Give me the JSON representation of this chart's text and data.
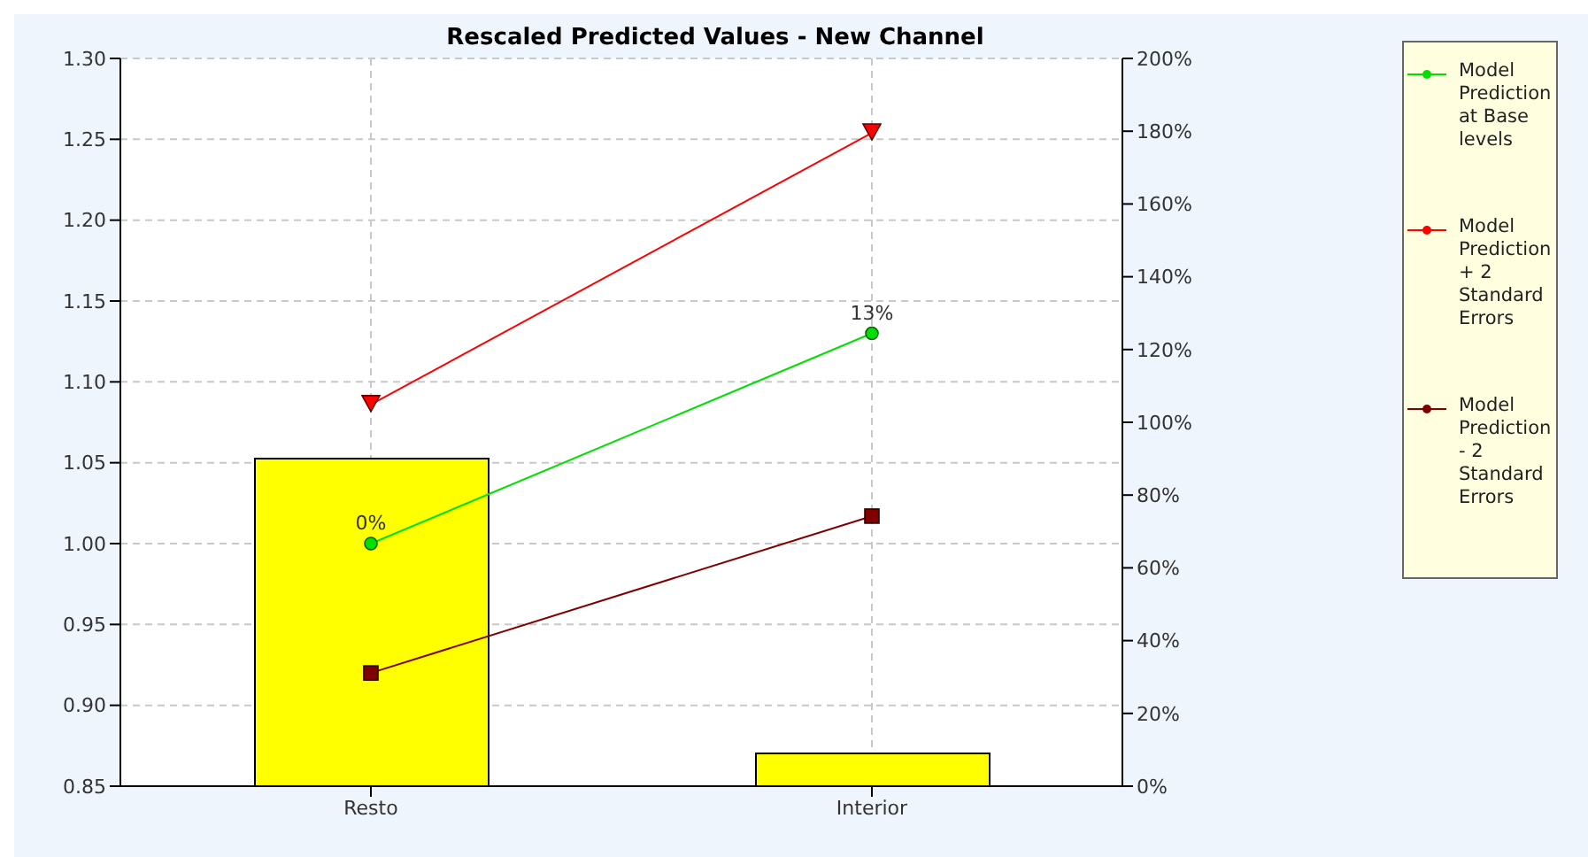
{
  "chart_data": {
    "type": "line",
    "title": "Rescaled Predicted Values - New Channel",
    "categories": [
      "Resto",
      "Interior"
    ],
    "series": [
      {
        "type": "bar",
        "axis": "y2",
        "color": "#ffff00",
        "values": [
          90,
          9
        ]
      },
      {
        "name": "Model Prediction at Base levels",
        "color": "#00e000",
        "marker": "circle",
        "values": [
          1.0,
          1.13
        ]
      },
      {
        "name": "Model Prediction + 2 Standard Errors",
        "color": "#ff0000",
        "marker": "triangle",
        "values": [
          1.086,
          1.254
        ]
      },
      {
        "name": "Model Prediction - 2 Standard Errors",
        "color": "#800000",
        "marker": "square",
        "values": [
          0.92,
          1.017
        ]
      }
    ],
    "ylim": [
      0.85,
      1.3
    ],
    "yticks": [
      {
        "value": 0.85,
        "label": "0.85"
      },
      {
        "value": 0.9,
        "label": "0.90"
      },
      {
        "value": 0.95,
        "label": "0.95"
      },
      {
        "value": 1.0,
        "label": "1.00"
      },
      {
        "value": 1.05,
        "label": "1.05"
      },
      {
        "value": 1.1,
        "label": "1.10"
      },
      {
        "value": 1.15,
        "label": "1.15"
      },
      {
        "value": 1.2,
        "label": "1.20"
      },
      {
        "value": 1.25,
        "label": "1.25"
      },
      {
        "value": 1.3,
        "label": "1.30"
      }
    ],
    "y2lim": [
      0,
      200
    ],
    "y2ticks": [
      {
        "value": 0,
        "label": "0%"
      },
      {
        "value": 20,
        "label": "20%"
      },
      {
        "value": 40,
        "label": "40%"
      },
      {
        "value": 60,
        "label": "60%"
      },
      {
        "value": 80,
        "label": "80%"
      },
      {
        "value": 100,
        "label": "100%"
      },
      {
        "value": 120,
        "label": "120%"
      },
      {
        "value": 140,
        "label": "140%"
      },
      {
        "value": 160,
        "label": "160%"
      },
      {
        "value": 180,
        "label": "180%"
      },
      {
        "value": 200,
        "label": "200%"
      }
    ],
    "annotations": [
      {
        "text": "0%",
        "x": "Resto",
        "y": 1.0
      },
      {
        "text": "13%",
        "x": "Interior",
        "y": 1.13
      }
    ],
    "grid": true,
    "legend": "right",
    "line_style": "solid"
  }
}
